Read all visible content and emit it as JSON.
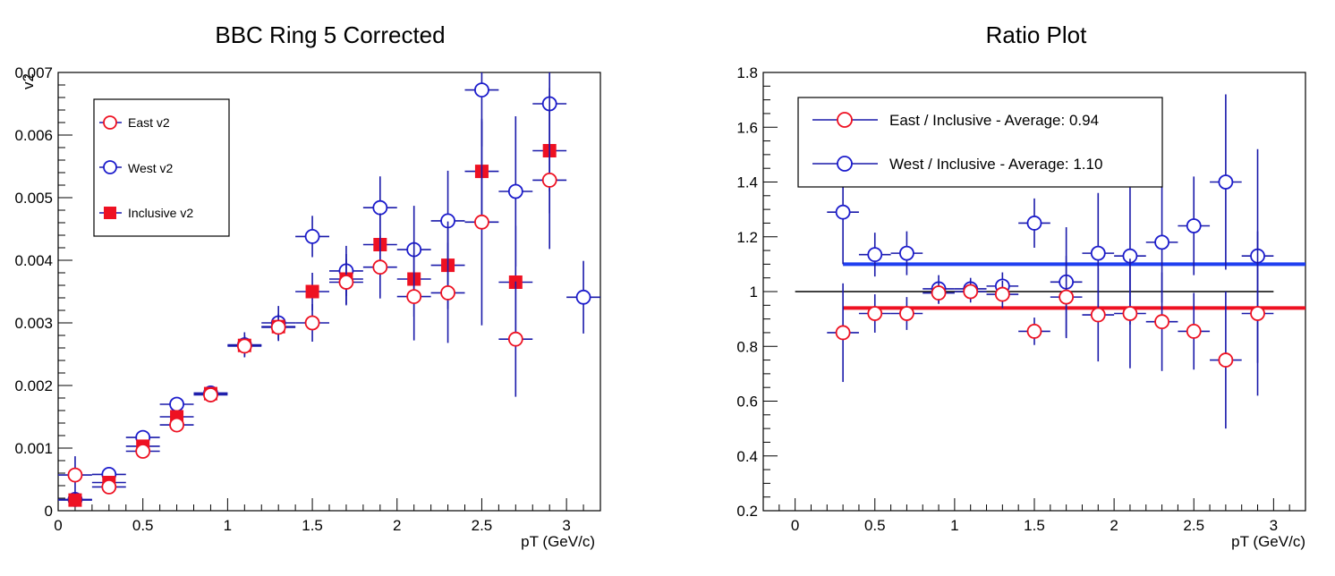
{
  "chart_data": [
    {
      "type": "scatter",
      "title": "BBC Ring 5 Corrected",
      "xlabel": "pT (GeV/c)",
      "ylabel": "v2",
      "xlim": [
        0,
        3.2
      ],
      "ylim": [
        0,
        0.007
      ],
      "xticks": [
        0,
        0.5,
        1,
        1.5,
        2,
        2.5,
        3
      ],
      "xtick_labels": [
        "0",
        "0.5",
        "1",
        "1.5",
        "2",
        "2.5",
        "3"
      ],
      "yticks": [
        0,
        0.001,
        0.002,
        0.003,
        0.004,
        0.005,
        0.006,
        0.007
      ],
      "ytick_labels": [
        "0",
        "0.001",
        "0.002",
        "0.003",
        "0.004",
        "0.005",
        "0.006",
        "0.007"
      ],
      "grid": false,
      "legend_position": "top-left",
      "x_bin_halfwidth": 0.1,
      "series": [
        {
          "name": "West v2",
          "marker": "open-circle",
          "color": "#1c1ccc",
          "err_color": "#1a1aaa",
          "x": [
            0.1,
            0.3,
            0.5,
            0.7,
            0.9,
            1.1,
            1.3,
            1.5,
            1.7,
            1.9,
            2.1,
            2.3,
            2.5,
            2.7,
            2.9,
            3.1
          ],
          "y": [
            0.00018,
            0.00058,
            0.00117,
            0.0017,
            0.00188,
            0.00265,
            0.003,
            0.00438,
            0.00383,
            0.00484,
            0.00417,
            0.00463,
            0.00672,
            0.0051,
            0.0065,
            0.00341
          ],
          "yerr": [
            0.0001,
            0.0001,
            0.0001,
            0.0001,
            0.00012,
            0.0002,
            0.00027,
            0.00033,
            0.0004,
            0.0005,
            0.0007,
            0.0008,
            0.0009,
            0.0012,
            0.0014,
            0.00058
          ]
        },
        {
          "name": "Inclusive v2",
          "marker": "filled-square",
          "color": "#ee1122",
          "err_color": "#1a1aaa",
          "x": [
            0.1,
            0.3,
            0.5,
            0.7,
            0.9,
            1.1,
            1.3,
            1.5,
            1.7,
            1.9,
            2.1,
            2.3,
            2.5,
            2.7,
            2.9
          ],
          "y": [
            0.00017,
            0.00045,
            0.00103,
            0.0015,
            0.00187,
            0.00264,
            0.00294,
            0.0035,
            0.0037,
            0.00425,
            0.0037,
            0.00392,
            0.00542,
            0.00365,
            0.00575
          ],
          "yerr": [
            8e-05,
            8e-05,
            8e-05,
            0.0001,
            0.0001,
            0.00015,
            0.0002,
            0.0003,
            0.0004,
            0.0005,
            0.0006,
            0.0007,
            0.0008,
            0.0009,
            0.001
          ]
        },
        {
          "name": "East v2",
          "marker": "open-circle",
          "color": "#ee1122",
          "err_color": "#1a1aaa",
          "x": [
            0.1,
            0.3,
            0.5,
            0.7,
            0.9,
            1.1,
            1.3,
            1.5,
            1.7,
            1.9,
            2.1,
            2.3,
            2.5,
            2.7,
            2.9
          ],
          "y": [
            0.00057,
            0.00038,
            0.00095,
            0.00137,
            0.00185,
            0.00263,
            0.00293,
            0.003,
            0.00365,
            0.00389,
            0.00342,
            0.00348,
            0.00461,
            0.00274,
            0.00528
          ],
          "yerr": [
            0.0003,
            0.0001,
            0.0001,
            0.0001,
            0.00012,
            0.00017,
            0.00022,
            0.0003,
            0.00037,
            0.0005,
            0.0007,
            0.0008,
            0.00165,
            0.00092,
            0.0011
          ]
        }
      ]
    },
    {
      "type": "scatter",
      "title": "Ratio Plot",
      "xlabel": "pT (GeV/c)",
      "ylabel": "",
      "xlim": [
        -0.2,
        3.2
      ],
      "ylim": [
        0.2,
        1.8
      ],
      "xticks": [
        0,
        0.5,
        1,
        1.5,
        2,
        2.5,
        3
      ],
      "xtick_labels": [
        "0",
        "0.5",
        "1",
        "1.5",
        "2",
        "2.5",
        "3"
      ],
      "yticks": [
        0.2,
        0.4,
        0.6,
        0.8,
        1,
        1.2,
        1.4,
        1.6,
        1.8
      ],
      "ytick_labels": [
        "0.2",
        "0.4",
        "0.6",
        "0.8",
        "1",
        "1.2",
        "1.4",
        "1.6",
        "1.8"
      ],
      "grid": false,
      "legend_position": "top-left",
      "x_bin_halfwidth": 0.1,
      "reference_line": {
        "y": 1,
        "x": [
          0,
          3
        ],
        "color": "#000000"
      },
      "fit_lines": [
        {
          "name": "west-average",
          "y": 1.1,
          "x": [
            0.3,
            3.2
          ],
          "color": "#1f3ff0"
        },
        {
          "name": "east-average",
          "y": 0.94,
          "x": [
            0.3,
            3.2
          ],
          "color": "#ee1122"
        }
      ],
      "series": [
        {
          "name": "West / Inclusive - Average: 1.10",
          "marker": "open-circle",
          "color": "#1c1ccc",
          "err_color": "#1a1aaa",
          "x": [
            0.3,
            0.5,
            0.7,
            0.9,
            1.1,
            1.3,
            1.5,
            1.7,
            1.9,
            2.1,
            2.3,
            2.5,
            2.7,
            2.9
          ],
          "y": [
            1.29,
            1.135,
            1.14,
            1.01,
            1.01,
            1.02,
            1.25,
            1.035,
            1.14,
            1.13,
            1.18,
            1.24,
            1.4,
            1.13
          ],
          "yerr": [
            0.19,
            0.08,
            0.08,
            0.05,
            0.04,
            0.05,
            0.09,
            0.2,
            0.22,
            0.25,
            0.22,
            0.18,
            0.32,
            0.39
          ]
        },
        {
          "name": "East / Inclusive - Average: 0.94",
          "marker": "open-circle",
          "color": "#ee1122",
          "err_color": "#1a1aaa",
          "x": [
            0.3,
            0.5,
            0.7,
            0.9,
            1.1,
            1.3,
            1.5,
            1.7,
            1.9,
            2.1,
            2.3,
            2.5,
            2.7,
            2.9
          ],
          "y": [
            0.85,
            0.92,
            0.92,
            0.995,
            1.0,
            0.99,
            0.855,
            0.98,
            0.915,
            0.92,
            0.89,
            0.855,
            0.75,
            0.92
          ],
          "yerr": [
            0.18,
            0.07,
            0.06,
            0.04,
            0.04,
            0.05,
            0.05,
            0.15,
            0.17,
            0.2,
            0.18,
            0.14,
            0.25,
            0.3
          ]
        }
      ]
    }
  ]
}
